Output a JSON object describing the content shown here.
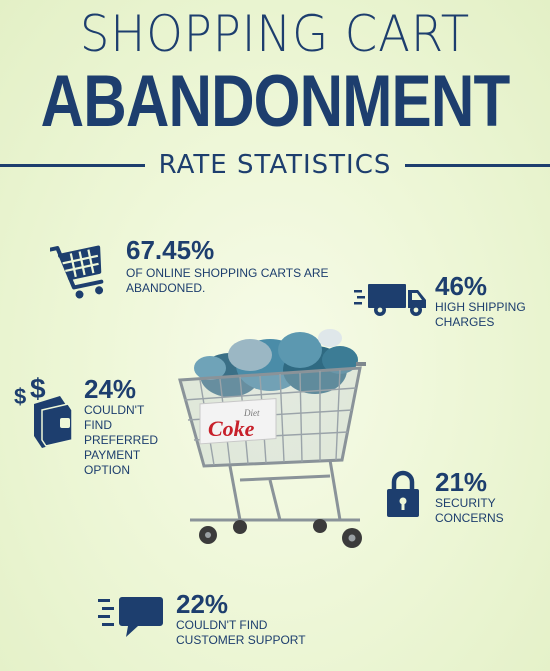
{
  "header": {
    "title_line1": "SHOPPING CART",
    "title_line2": "ABANDONMENT",
    "subtitle": "RATE STATISTICS"
  },
  "stats": {
    "abandoned": {
      "value": "67.45%",
      "label": "OF ONLINE SHOPPING CARTS ARE ABANDONED.",
      "icon": "shopping-cart-icon"
    },
    "shipping": {
      "value": "46%",
      "label_line1": "HIGH SHIPPING",
      "label_line2": "CHARGES",
      "icon": "delivery-truck-icon"
    },
    "payment": {
      "value": "24%",
      "label_lines": [
        "COULDN'T",
        "FIND",
        "PREFERRED",
        "PAYMENT",
        "OPTION"
      ],
      "icon": "wallet-dollar-icon"
    },
    "security": {
      "value": "21%",
      "label_line1": "SECURITY",
      "label_line2": "CONCERNS",
      "icon": "padlock-icon"
    },
    "support": {
      "value": "22%",
      "label_line1": "COULDN'T FIND",
      "label_line2": "CUSTOMER SUPPORT",
      "icon": "chat-bubble-icon"
    }
  },
  "photo": {
    "brand_text": "Coke",
    "brand_sub": "Diet"
  },
  "colors": {
    "primary": "#1d3e6e",
    "background": "#eef7d8"
  }
}
